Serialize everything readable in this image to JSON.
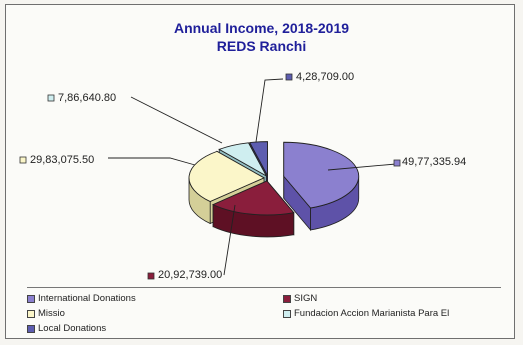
{
  "chart_data": {
    "type": "pie",
    "title": "Annual Income, 2018-2019",
    "subtitle": "REDS Ranchi",
    "slices": [
      {
        "label": "International Donations",
        "value": 4977335.94,
        "value_label": "49,77,335.94",
        "color": "#8b80cf",
        "side": "#5e52a8"
      },
      {
        "label": "SIGN",
        "value": 2092739.0,
        "value_label": "20,92,739.00",
        "color": "#8a1e3c",
        "side": "#5e1024"
      },
      {
        "label": "Missio",
        "value": 2983075.5,
        "value_label": "29,83,075.50",
        "color": "#fbf6c9",
        "side": "#d4cf98"
      },
      {
        "label": "Fundacion Accion Marianista Para El",
        "value": 786640.8,
        "value_label": "7,86,640.80",
        "color": "#cfeef0",
        "side": "#93bfc3"
      },
      {
        "label": "Local Donations",
        "value": 428709.0,
        "value_label": "4,28,709.00",
        "color": "#5d5db0",
        "side": "#3a3a84"
      }
    ],
    "legend_placement": "bottom"
  }
}
